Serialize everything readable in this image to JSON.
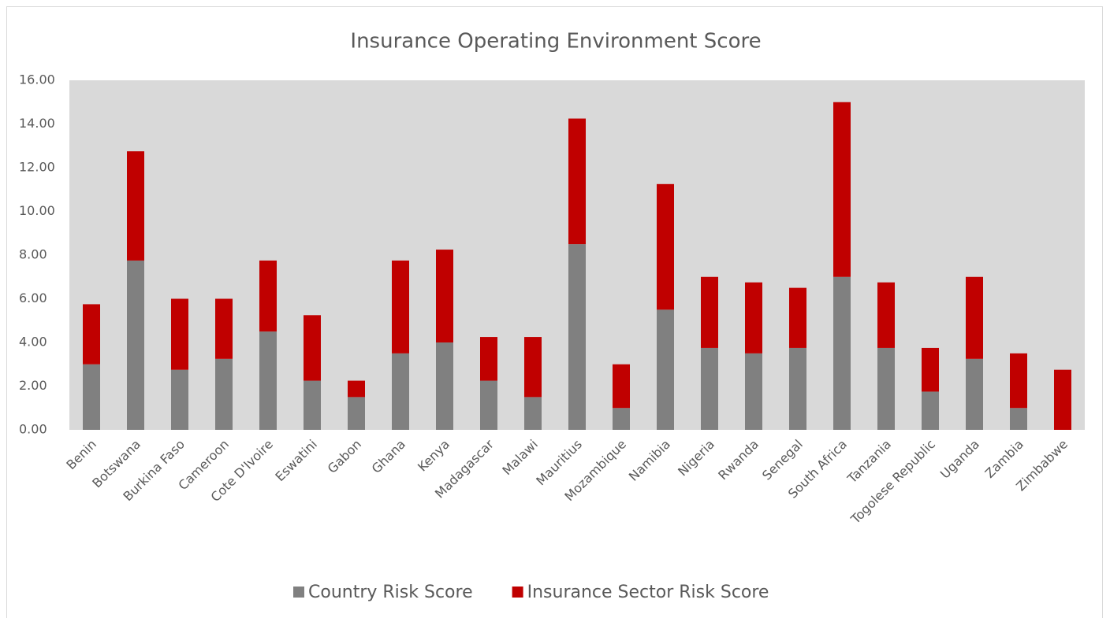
{
  "chart_data": {
    "type": "stacked_bar",
    "title": "Insurance Operating Environment Score",
    "categories": [
      "Benin",
      "Botswana",
      "Burkina Faso",
      "Cameroon",
      "Cote D'Ivoire",
      "Eswatini",
      "Gabon",
      "Ghana",
      "Kenya",
      "Madagascar",
      "Malawi",
      "Mauritius",
      "Mozambique",
      "Namibia",
      "Nigeria",
      "Rwanda",
      "Senegal",
      "South Africa",
      "Tanzania",
      "Togolese Republic",
      "Uganda",
      "Zambia",
      "Zimbabwe"
    ],
    "series": [
      {
        "name": "Country Risk Score",
        "color": "#808080",
        "values": [
          3.0,
          7.75,
          2.75,
          3.25,
          4.5,
          2.25,
          1.5,
          3.5,
          4.0,
          2.25,
          1.5,
          8.5,
          1.0,
          5.5,
          3.75,
          3.5,
          3.75,
          7.0,
          3.75,
          1.75,
          3.25,
          1.0,
          0
        ]
      },
      {
        "name": "Insurance Sector Risk Score",
        "color": "#c00000",
        "values": [
          2.75,
          5.0,
          3.25,
          2.75,
          3.25,
          3.0,
          0.75,
          4.25,
          4.25,
          2.0,
          2.75,
          5.75,
          2.0,
          5.75,
          3.25,
          3.25,
          2.75,
          8.0,
          3.0,
          2.0,
          3.75,
          2.5,
          2.75
        ]
      }
    ],
    "ylim": [
      0,
      16
    ],
    "yticks": [
      {
        "value": 0,
        "label": "0.00"
      },
      {
        "value": 2,
        "label": "2.00"
      },
      {
        "value": 4,
        "label": "4.00"
      },
      {
        "value": 6,
        "label": "6.00"
      },
      {
        "value": 8,
        "label": "8.00"
      },
      {
        "value": 10,
        "label": "10.00"
      },
      {
        "value": 12,
        "label": "12.00"
      },
      {
        "value": 14,
        "label": "14.00"
      },
      {
        "value": 16,
        "label": "16.00"
      }
    ],
    "legend": "bottom",
    "plot_background": "#d9d9d9"
  }
}
